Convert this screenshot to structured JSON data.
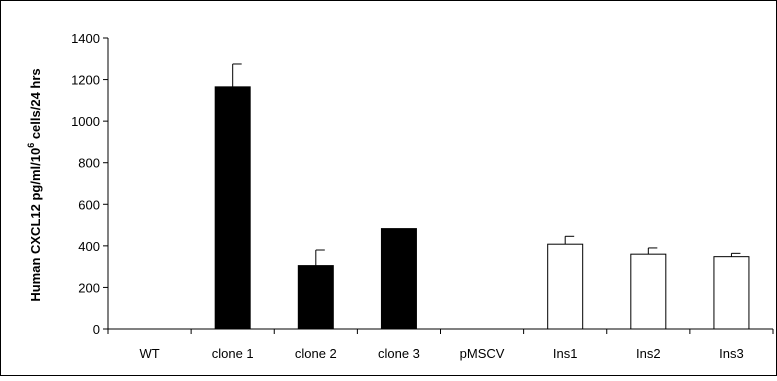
{
  "chart_data": {
    "type": "bar",
    "ylabel": {
      "main": "Human CXCL12 pg/ml/10",
      "superscript": "6",
      "suffix": " cells/24 hrs"
    },
    "xlabel": "",
    "ylim": [
      0,
      1400
    ],
    "yticks": [
      0,
      200,
      400,
      600,
      800,
      1000,
      1200,
      1400
    ],
    "categories": [
      "WT",
      "clone 1",
      "clone 2",
      "clone 3",
      "pMSCV",
      "Ins1",
      "Ins2",
      "Ins3"
    ],
    "values": [
      0,
      1165,
      305,
      483,
      0,
      408,
      360,
      348
    ],
    "errors": [
      0,
      110,
      75,
      0,
      0,
      38,
      30,
      16
    ],
    "fills": [
      "#000000",
      "#000000",
      "#000000",
      "#000000",
      "#ffffff",
      "#ffffff",
      "#ffffff",
      "#ffffff"
    ],
    "grid": false,
    "legend": "none"
  }
}
